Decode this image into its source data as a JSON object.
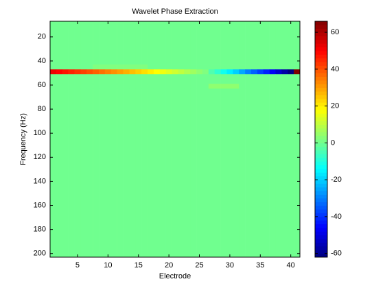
{
  "chart_data": {
    "type": "heatmap",
    "title": "Wavelet Phase Extraction",
    "x_label": "Electrode",
    "y_label": "Frequency (Hz)",
    "x": [
      1,
      2,
      3,
      4,
      5,
      6,
      7,
      8,
      9,
      10,
      11,
      12,
      13,
      14,
      15,
      16,
      17,
      18,
      19,
      20,
      21,
      22,
      23,
      24,
      25,
      26,
      27,
      28,
      29,
      30,
      31,
      32,
      33,
      34,
      35,
      36,
      37,
      38,
      39,
      40,
      41
    ],
    "y_edges": [
      7,
      43,
      47,
      51,
      59,
      63,
      203
    ],
    "z": [
      [
        0,
        0,
        0,
        0,
        0,
        0,
        0,
        0,
        0,
        0,
        0,
        0,
        0,
        0,
        0,
        0,
        0,
        0,
        0,
        0,
        0,
        0,
        0,
        0,
        0,
        0,
        0,
        0,
        0,
        0,
        0,
        0,
        0,
        0,
        0,
        0,
        0,
        0,
        0,
        0,
        0
      ],
      [
        0,
        0,
        0,
        0,
        0,
        0,
        0,
        2,
        2,
        2,
        2,
        2,
        2,
        2,
        2,
        2,
        0,
        0,
        0,
        0,
        0,
        0,
        0,
        0,
        0,
        0,
        0,
        0,
        0,
        0,
        0,
        0,
        0,
        0,
        0,
        0,
        0,
        0,
        0,
        0,
        0
      ],
      [
        52,
        50,
        48,
        46,
        44,
        42,
        40,
        38,
        36,
        34,
        32,
        30,
        28,
        26,
        24,
        22,
        20,
        18,
        16,
        14,
        12,
        10,
        8,
        6,
        4,
        2,
        -4,
        -8,
        -12,
        -16,
        -20,
        -25,
        -30,
        -34,
        -38,
        -42,
        -47,
        -52,
        -57,
        -62,
        66
      ],
      [
        0,
        0,
        0,
        0,
        0,
        0,
        0,
        0,
        0,
        0,
        0,
        0,
        0,
        0,
        0,
        0,
        0,
        0,
        0,
        0,
        0,
        0,
        0,
        0,
        0,
        0,
        0,
        0,
        0,
        0,
        0,
        0,
        0,
        0,
        0,
        0,
        0,
        0,
        0,
        0,
        0
      ],
      [
        0,
        0,
        0,
        0,
        0,
        0,
        0,
        0,
        0,
        0,
        0,
        0,
        0,
        0,
        0,
        0,
        0,
        0,
        0,
        0,
        0,
        0,
        0,
        0,
        0,
        0,
        4,
        4,
        4,
        4,
        4,
        0,
        0,
        0,
        0,
        0,
        0,
        0,
        0,
        0,
        0
      ],
      [
        0,
        0,
        0,
        0,
        0,
        0,
        0,
        0,
        0,
        0,
        0,
        0,
        0,
        0,
        0,
        0,
        0,
        0,
        0,
        0,
        0,
        0,
        0,
        0,
        0,
        0,
        0,
        0,
        0,
        0,
        0,
        0,
        0,
        0,
        0,
        0,
        0,
        0,
        0,
        0,
        0
      ]
    ],
    "xlim": [
      0.5,
      41.5
    ],
    "xticks": [
      5,
      10,
      15,
      20,
      25,
      30,
      35,
      40
    ],
    "ylim": [
      7,
      203
    ],
    "yticks": [
      20,
      40,
      60,
      80,
      100,
      120,
      140,
      160,
      180,
      200
    ],
    "y_reversed": true,
    "colormap": "jet",
    "clim": [
      -62,
      66
    ],
    "colorbar_ticks": [
      -60,
      -40,
      -20,
      0,
      20,
      40,
      60
    ]
  }
}
